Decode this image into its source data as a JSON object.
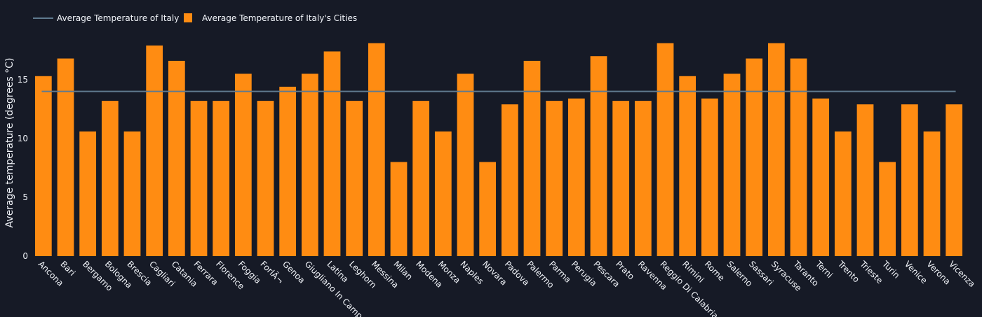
{
  "chart_data": {
    "type": "bar",
    "title": "",
    "xlabel": "",
    "ylabel": "Average temperature (degrees °C)",
    "ylim": [
      0,
      18.5
    ],
    "yticks": [
      0,
      5,
      10,
      15
    ],
    "grid": false,
    "legend_position": "top-left",
    "colors": {
      "background": "#161a26",
      "bar": "#ff8c12",
      "line": "#5f7a8f",
      "text": "#f2f5fa"
    },
    "categories": [
      "Ancona",
      "Bari",
      "Bergamo",
      "Bologna",
      "Brescia",
      "Cagliari",
      "Catania",
      "Ferrara",
      "Florence",
      "Foggia",
      "ForlÃ¬",
      "Genoa",
      "Giugliano In Camp",
      "Latina",
      "Leghorn",
      "Messina",
      "Milan",
      "Modena",
      "Monza",
      "Naples",
      "Novara",
      "Padova",
      "Palermo",
      "Parma",
      "Perugia",
      "Pescara",
      "Prato",
      "Ravenna",
      "Reggio Di Calabria",
      "Rimini",
      "Rome",
      "Salerno",
      "Sassari",
      "Syracuse",
      "Taranto",
      "Terni",
      "Trento",
      "Trieste",
      "Turin",
      "Venice",
      "Verona",
      "Vicenza"
    ],
    "series": [
      {
        "name": "Average Temperature of Italy's Cities",
        "kind": "bar",
        "values": [
          15.3,
          16.8,
          10.6,
          13.2,
          10.6,
          17.9,
          16.6,
          13.2,
          13.2,
          15.5,
          13.2,
          14.4,
          15.5,
          17.4,
          13.2,
          18.1,
          8.0,
          13.2,
          10.6,
          15.5,
          8.0,
          12.9,
          16.6,
          13.2,
          13.4,
          17.0,
          13.2,
          13.2,
          18.1,
          15.3,
          13.4,
          15.5,
          16.8,
          18.1,
          16.8,
          13.4,
          10.6,
          12.9,
          8.0,
          12.9,
          10.6,
          12.9
        ]
      },
      {
        "name": "Average Temperature of Italy",
        "kind": "line",
        "value": 14.0
      }
    ]
  }
}
